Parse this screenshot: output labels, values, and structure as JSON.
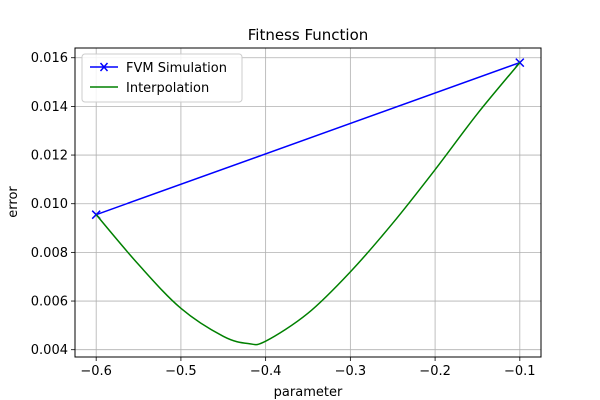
{
  "chart_data": {
    "type": "line",
    "title": "Fitness Function",
    "xlabel": "parameter",
    "ylabel": "error",
    "xlim": [
      -0.625,
      -0.075
    ],
    "ylim": [
      0.0037,
      0.0164
    ],
    "xticks": [
      -0.6,
      -0.5,
      -0.4,
      -0.3,
      -0.2,
      -0.1
    ],
    "xtick_labels": [
      "−0.6",
      "−0.5",
      "−0.4",
      "−0.3",
      "−0.2",
      "−0.1"
    ],
    "yticks": [
      0.004,
      0.006,
      0.008,
      0.01,
      0.012,
      0.014,
      0.016
    ],
    "ytick_labels": [
      "0.004",
      "0.006",
      "0.008",
      "0.010",
      "0.012",
      "0.014",
      "0.016"
    ],
    "grid": true,
    "legend_position": "upper-left",
    "series": [
      {
        "name": "FVM Simulation",
        "color": "#0000ff",
        "marker": "x",
        "x": [
          -0.6,
          -0.1
        ],
        "y": [
          0.00955,
          0.0158
        ]
      },
      {
        "name": "Interpolation",
        "color": "#008000",
        "marker": "none",
        "x": [
          -0.6,
          -0.55,
          -0.5,
          -0.45,
          -0.42,
          -0.4,
          -0.35,
          -0.3,
          -0.25,
          -0.2,
          -0.15,
          -0.1
        ],
        "y": [
          0.00955,
          0.0075,
          0.0057,
          0.00455,
          0.00425,
          0.00435,
          0.0055,
          0.0072,
          0.0092,
          0.0114,
          0.0137,
          0.0158
        ]
      }
    ]
  }
}
